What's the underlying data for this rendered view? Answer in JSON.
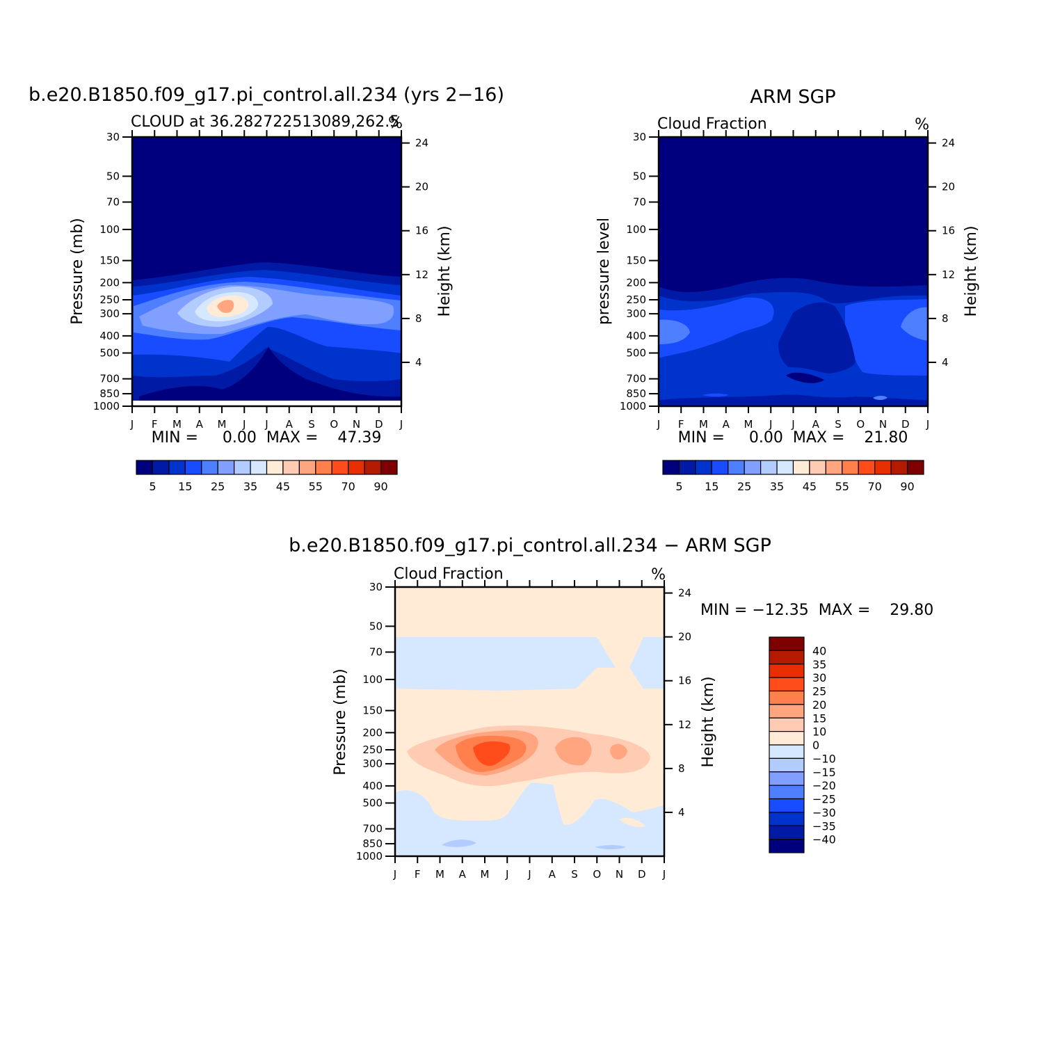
{
  "colors": {
    "abs_scale": [
      "#00007f",
      "#001aa6",
      "#0033cc",
      "#1a4cff",
      "#4d7fff",
      "#809fff",
      "#b3ccff",
      "#d6e8ff",
      "#ffebd6",
      "#ffccb3",
      "#ffa680",
      "#ff7f4d",
      "#ff4c1a",
      "#e62e00",
      "#b31a00",
      "#7f0000"
    ],
    "diff_scale": [
      "#00007f",
      "#001aa6",
      "#0033cc",
      "#1a4cff",
      "#4d7fff",
      "#809fff",
      "#b3ccff",
      "#d6e8ff",
      "#ffebd6",
      "#ffccb3",
      "#ffa680",
      "#ff7f4d",
      "#ff4c1a",
      "#e62e00",
      "#b31a00",
      "#7f0000"
    ]
  },
  "chart_data": [
    {
      "id": "model",
      "type": "heatmap",
      "title": "b.e20.B1850.f09_g17.pi_control.all.234 (yrs 2−16)",
      "subtitle": "CLOUD at 36.282722513089,262.5",
      "units": "%",
      "ylabel": "Pressure (mb)",
      "ylabel_right": "Height (km)",
      "x_ticks": [
        "J",
        "F",
        "M",
        "A",
        "M",
        "J",
        "J",
        "A",
        "S",
        "O",
        "N",
        "D",
        "J"
      ],
      "y_ticks": [
        "30",
        "50",
        "70",
        "100",
        "150",
        "200",
        "250",
        "300",
        "400",
        "500",
        "700",
        "850",
        "1000"
      ],
      "y_right_ticks": [
        "24",
        "20",
        "16",
        "12",
        "8",
        "4"
      ],
      "min_max_label": "MIN =     0.00  MAX =    47.39",
      "min": 0.0,
      "max": 47.39,
      "colorbar_labels": [
        "5",
        "15",
        "25",
        "35",
        "45",
        "55",
        "70",
        "90"
      ],
      "colorbar_levels": [
        5,
        10,
        15,
        20,
        25,
        30,
        35,
        40,
        45,
        50,
        55,
        60,
        70,
        80,
        90
      ],
      "ylim": [
        1000,
        30
      ]
    },
    {
      "id": "obs",
      "type": "heatmap",
      "title": "ARM SGP",
      "subtitle": "Cloud Fraction",
      "units": "%",
      "ylabel": "pressure level",
      "ylabel_right": "Height (km)",
      "x_ticks": [
        "J",
        "F",
        "M",
        "A",
        "M",
        "J",
        "J",
        "A",
        "S",
        "O",
        "N",
        "D",
        "J"
      ],
      "y_ticks": [
        "30",
        "50",
        "70",
        "100",
        "150",
        "200",
        "250",
        "300",
        "400",
        "500",
        "700",
        "850",
        "1000"
      ],
      "y_right_ticks": [
        "24",
        "20",
        "16",
        "12",
        "8",
        "4"
      ],
      "min_max_label": "MIN =     0.00  MAX =    21.80",
      "min": 0.0,
      "max": 21.8,
      "colorbar_labels": [
        "5",
        "15",
        "25",
        "35",
        "45",
        "55",
        "70",
        "90"
      ],
      "colorbar_levels": [
        5,
        10,
        15,
        20,
        25,
        30,
        35,
        40,
        45,
        50,
        55,
        60,
        70,
        80,
        90
      ],
      "ylim": [
        1000,
        30
      ]
    },
    {
      "id": "diff",
      "type": "heatmap",
      "title": "b.e20.B1850.f09_g17.pi_control.all.234 − ARM SGP",
      "subtitle": "Cloud Fraction",
      "units": "%",
      "ylabel": "Pressure (mb)",
      "ylabel_right": "Height (km)",
      "x_ticks": [
        "J",
        "F",
        "M",
        "A",
        "M",
        "J",
        "J",
        "A",
        "S",
        "O",
        "N",
        "D",
        "J"
      ],
      "y_ticks": [
        "30",
        "50",
        "70",
        "100",
        "150",
        "200",
        "250",
        "300",
        "400",
        "500",
        "700",
        "850",
        "1000"
      ],
      "y_right_ticks": [
        "24",
        "20",
        "16",
        "12",
        "8",
        "4"
      ],
      "min_max_label": "MIN = −12.35  MAX =    29.80",
      "min": -12.35,
      "max": 29.8,
      "colorbar_labels": [
        "40",
        "35",
        "30",
        "25",
        "20",
        "15",
        "10",
        "0",
        "−10",
        "−15",
        "−20",
        "−25",
        "−30",
        "−35",
        "−40"
      ],
      "colorbar_levels": [
        40,
        35,
        30,
        25,
        20,
        15,
        10,
        0,
        -10,
        -15,
        -20,
        -25,
        -30,
        -35,
        -40
      ],
      "ylim": [
        1000,
        30
      ]
    }
  ]
}
